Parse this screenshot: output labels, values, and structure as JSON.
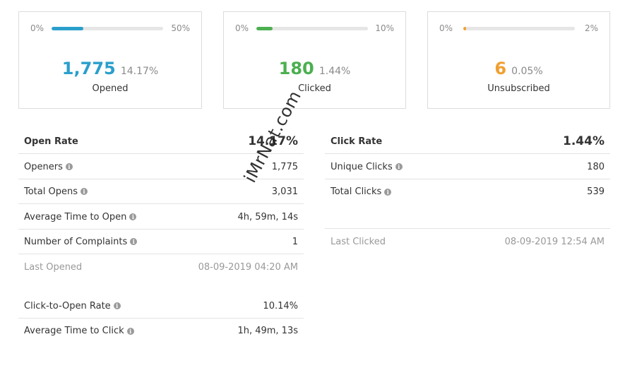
{
  "cards": {
    "opened": {
      "min_label": "0%",
      "max_label": "50%",
      "progress_fraction": 0.2834,
      "color": "#2b9fcc",
      "count": "1,775",
      "percent": "14.17%",
      "caption": "Opened"
    },
    "clicked": {
      "min_label": "0%",
      "max_label": "10%",
      "progress_fraction": 0.144,
      "color": "#4caf50",
      "count": "180",
      "percent": "1.44%",
      "caption": "Clicked"
    },
    "unsubscribed": {
      "min_label": "0%",
      "max_label": "2%",
      "progress_fraction": 0.025,
      "color": "#f0a030",
      "count": "6",
      "percent": "0.05%",
      "caption": "Unsubscribed"
    }
  },
  "open_stats": {
    "title": "Open Rate",
    "title_value": "14.17%",
    "rows": [
      {
        "label": "Openers",
        "value": "1,775",
        "info_icon": "info-icon"
      },
      {
        "label": "Total Opens",
        "value": "3,031",
        "info_icon": "info-icon"
      },
      {
        "label": "Average Time to Open",
        "value": "4h, 59m, 14s",
        "info_icon": "info-icon"
      },
      {
        "label": "Number of Complaints",
        "value": "1",
        "info_icon": "info-icon"
      }
    ],
    "last_opened": {
      "label": "Last Opened",
      "value": "08-09-2019 04:20 AM"
    },
    "extra_rows": [
      {
        "label": "Click-to-Open Rate",
        "value": "10.14%",
        "info_icon": "info-icon"
      },
      {
        "label": "Average Time to Click",
        "value": "1h, 49m, 13s",
        "info_icon": "info-icon"
      }
    ]
  },
  "click_stats": {
    "title": "Click Rate",
    "title_value": "1.44%",
    "rows": [
      {
        "label": "Unique Clicks",
        "value": "180",
        "info_icon": "info-icon"
      },
      {
        "label": "Total Clicks",
        "value": "539",
        "info_icon": "info-icon"
      }
    ],
    "last_clicked": {
      "label": "Last Clicked",
      "value": "08-09-2019 12:54 AM"
    }
  },
  "watermark": "iMrNat.com"
}
